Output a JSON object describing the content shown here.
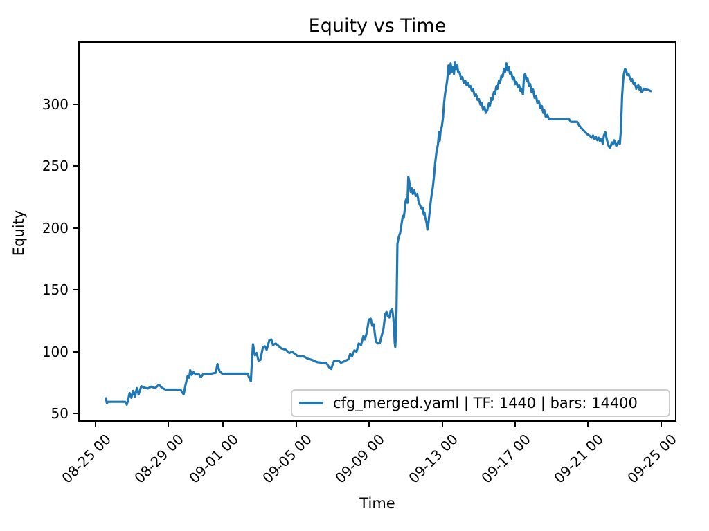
{
  "figure": {
    "background": "#ffffff"
  },
  "colors": {
    "line": "#1f77b4",
    "text": "#000000",
    "legend_border": "#cccccc",
    "spine": "#000000"
  },
  "chart_data": {
    "type": "line",
    "title": "Equity vs Time",
    "xlabel": "Time",
    "ylabel": "Equity",
    "grid": false,
    "legend_position": "lower right",
    "x_tick_rotation": 45,
    "x_axis_unit": "days after 08-25 00",
    "xlim": [
      -0.95,
      31.84
    ],
    "ylim": [
      43.3,
      350.6
    ],
    "y_ticks": [
      50,
      100,
      150,
      200,
      250,
      300
    ],
    "x_ticks": [
      {
        "label": "08-25 00",
        "day": 0
      },
      {
        "label": "08-29 00",
        "day": 4
      },
      {
        "label": "09-01 00",
        "day": 7
      },
      {
        "label": "09-05 00",
        "day": 11
      },
      {
        "label": "09-09 00",
        "day": 15
      },
      {
        "label": "09-13 00",
        "day": 19
      },
      {
        "label": "09-17 00",
        "day": 23
      },
      {
        "label": "09-21 00",
        "day": 27
      },
      {
        "label": "09-25 00",
        "day": 31
      }
    ],
    "series": [
      {
        "name": "cfg_merged.yaml | TF: 1440 | bars: 14400",
        "color": "#1f77b4",
        "points": [
          [
            0.5,
            61.3
          ],
          [
            0.55,
            57.3
          ],
          [
            0.62,
            58.4
          ],
          [
            1.55,
            58.4
          ],
          [
            1.65,
            56.1
          ],
          [
            1.72,
            60.0
          ],
          [
            1.8,
            65.6
          ],
          [
            1.9,
            61.7
          ],
          [
            2.0,
            67.3
          ],
          [
            2.1,
            62.8
          ],
          [
            2.2,
            69.6
          ],
          [
            2.3,
            64.5
          ],
          [
            2.45,
            71.2
          ],
          [
            2.6,
            70.0
          ],
          [
            2.8,
            69.2
          ],
          [
            3.0,
            70.8
          ],
          [
            3.2,
            69.5
          ],
          [
            3.42,
            72.3
          ],
          [
            3.6,
            69.6
          ],
          [
            3.78,
            68.4
          ],
          [
            4.6,
            68.4
          ],
          [
            4.78,
            64.5
          ],
          [
            4.88,
            72.0
          ],
          [
            5.0,
            79.6
          ],
          [
            5.08,
            78.0
          ],
          [
            5.14,
            84.1
          ],
          [
            5.22,
            80.3
          ],
          [
            5.32,
            82.5
          ],
          [
            5.45,
            80.7
          ],
          [
            5.6,
            81.2
          ],
          [
            5.72,
            78.5
          ],
          [
            5.85,
            80.8
          ],
          [
            6.3,
            81.3
          ],
          [
            6.55,
            82.0
          ],
          [
            6.64,
            89.1
          ],
          [
            6.75,
            83.5
          ],
          [
            6.9,
            81.3
          ],
          [
            8.3,
            81.3
          ],
          [
            8.42,
            76.8
          ],
          [
            8.48,
            75.1
          ],
          [
            8.55,
            95.0
          ],
          [
            8.6,
            105.3
          ],
          [
            8.7,
            96.4
          ],
          [
            8.8,
            98.1
          ],
          [
            8.9,
            91.9
          ],
          [
            9.0,
            92.5
          ],
          [
            9.15,
            103.1
          ],
          [
            9.25,
            103.6
          ],
          [
            9.35,
            100.8
          ],
          [
            9.5,
            108.7
          ],
          [
            9.6,
            109.2
          ],
          [
            9.7,
            104.7
          ],
          [
            9.85,
            105.9
          ],
          [
            10.15,
            101.9
          ],
          [
            10.4,
            100.8
          ],
          [
            10.6,
            98.1
          ],
          [
            10.75,
            99.2
          ],
          [
            10.9,
            97.5
          ],
          [
            11.1,
            95.3
          ],
          [
            11.4,
            95.3
          ],
          [
            11.6,
            93.6
          ],
          [
            11.85,
            92.5
          ],
          [
            12.1,
            90.8
          ],
          [
            12.4,
            90.2
          ],
          [
            12.65,
            89.7
          ],
          [
            12.8,
            86.3
          ],
          [
            12.9,
            85.2
          ],
          [
            13.05,
            91.4
          ],
          [
            13.3,
            91.9
          ],
          [
            13.45,
            90.2
          ],
          [
            13.7,
            91.9
          ],
          [
            13.85,
            93.0
          ],
          [
            13.95,
            97.5
          ],
          [
            14.05,
            95.3
          ],
          [
            14.18,
            100.3
          ],
          [
            14.3,
            99.2
          ],
          [
            14.42,
            105.9
          ],
          [
            14.55,
            104.7
          ],
          [
            14.68,
            112.0
          ],
          [
            14.76,
            109.2
          ],
          [
            14.86,
            114.8
          ],
          [
            14.98,
            125.4
          ],
          [
            15.08,
            126.0
          ],
          [
            15.16,
            120.4
          ],
          [
            15.24,
            121.5
          ],
          [
            15.36,
            107.5
          ],
          [
            15.48,
            105.9
          ],
          [
            15.58,
            106.4
          ],
          [
            15.7,
            113.1
          ],
          [
            15.78,
            117.6
          ],
          [
            15.88,
            129.9
          ],
          [
            15.95,
            131.6
          ],
          [
            16.02,
            128.2
          ],
          [
            16.1,
            127.1
          ],
          [
            16.18,
            132.7
          ],
          [
            16.26,
            133.8
          ],
          [
            16.32,
            127.1
          ],
          [
            16.36,
            119.8
          ],
          [
            16.4,
            106.4
          ],
          [
            16.43,
            103.1
          ],
          [
            16.46,
            110.3
          ],
          [
            16.48,
            121.5
          ],
          [
            16.5,
            133.0
          ],
          [
            16.55,
            186.9
          ],
          [
            16.62,
            192.5
          ],
          [
            16.7,
            196.0
          ],
          [
            16.78,
            203.6
          ],
          [
            16.85,
            209.8
          ],
          [
            16.9,
            208.1
          ],
          [
            16.95,
            214.8
          ],
          [
            17.0,
            222.1
          ],
          [
            17.05,
            223.7
          ],
          [
            17.1,
            220.4
          ],
          [
            17.15,
            241.6
          ],
          [
            17.22,
            236.0
          ],
          [
            17.28,
            229.3
          ],
          [
            17.34,
            232.1
          ],
          [
            17.4,
            227.6
          ],
          [
            17.48,
            230.4
          ],
          [
            17.56,
            226.0
          ],
          [
            17.64,
            227.6
          ],
          [
            17.72,
            220.9
          ],
          [
            17.8,
            218.2
          ],
          [
            17.88,
            215.4
          ],
          [
            17.94,
            216.5
          ],
          [
            18.0,
            210.9
          ],
          [
            18.04,
            212.6
          ],
          [
            18.08,
            208.1
          ],
          [
            18.12,
            206.4
          ],
          [
            18.16,
            203.6
          ],
          [
            18.2,
            198.6
          ],
          [
            18.24,
            201.4
          ],
          [
            18.28,
            207.0
          ],
          [
            18.32,
            212.6
          ],
          [
            18.38,
            220.9
          ],
          [
            18.44,
            227.6
          ],
          [
            18.5,
            233.2
          ],
          [
            18.56,
            241.6
          ],
          [
            18.62,
            252.0
          ],
          [
            18.7,
            262.0
          ],
          [
            18.78,
            267.9
          ],
          [
            18.84,
            278.0
          ],
          [
            18.88,
            271.0
          ],
          [
            18.92,
            278.0
          ],
          [
            19.0,
            283.0
          ],
          [
            19.06,
            290.2
          ],
          [
            19.12,
            302.0
          ],
          [
            19.18,
            309.8
          ],
          [
            19.24,
            315.0
          ],
          [
            19.3,
            321.6
          ],
          [
            19.36,
            332.2
          ],
          [
            19.42,
            325.4
          ],
          [
            19.48,
            333.9
          ],
          [
            19.54,
            327.1
          ],
          [
            19.6,
            331.0
          ],
          [
            19.66,
            325.4
          ],
          [
            19.72,
            335.0
          ],
          [
            19.78,
            329.3
          ],
          [
            19.84,
            332.2
          ],
          [
            19.9,
            326.5
          ],
          [
            19.97,
            327.1
          ],
          [
            20.05,
            321.6
          ],
          [
            20.12,
            322.7
          ],
          [
            20.2,
            318.2
          ],
          [
            20.28,
            319.9
          ],
          [
            20.36,
            316.0
          ],
          [
            20.44,
            318.2
          ],
          [
            20.52,
            314.3
          ],
          [
            20.58,
            315.4
          ],
          [
            20.65,
            311.5
          ],
          [
            20.72,
            312.6
          ],
          [
            20.8,
            307.5
          ],
          [
            20.88,
            308.7
          ],
          [
            20.96,
            304.2
          ],
          [
            21.04,
            304.8
          ],
          [
            21.12,
            300.3
          ],
          [
            21.18,
            302.0
          ],
          [
            21.26,
            296.4
          ],
          [
            21.34,
            298.6
          ],
          [
            21.42,
            293.6
          ],
          [
            21.5,
            295.8
          ],
          [
            21.58,
            301.4
          ],
          [
            21.64,
            299.2
          ],
          [
            21.72,
            305.9
          ],
          [
            21.78,
            304.2
          ],
          [
            21.86,
            310.4
          ],
          [
            21.92,
            308.7
          ],
          [
            22.0,
            315.4
          ],
          [
            22.06,
            313.2
          ],
          [
            22.14,
            319.9
          ],
          [
            22.2,
            318.2
          ],
          [
            22.28,
            324.3
          ],
          [
            22.34,
            322.7
          ],
          [
            22.42,
            329.3
          ],
          [
            22.48,
            327.1
          ],
          [
            22.55,
            333.9
          ],
          [
            22.62,
            328.2
          ],
          [
            22.68,
            331.0
          ],
          [
            22.75,
            325.4
          ],
          [
            22.82,
            326.5
          ],
          [
            22.9,
            320.9
          ],
          [
            22.96,
            322.7
          ],
          [
            23.04,
            317.1
          ],
          [
            23.1,
            318.8
          ],
          [
            23.18,
            314.3
          ],
          [
            23.25,
            316.0
          ],
          [
            23.32,
            311.5
          ],
          [
            23.38,
            313.2
          ],
          [
            23.46,
            308.7
          ],
          [
            23.52,
            323.8
          ],
          [
            23.58,
            325.4
          ],
          [
            23.66,
            319.9
          ],
          [
            23.72,
            321.6
          ],
          [
            23.8,
            315.4
          ],
          [
            23.86,
            317.1
          ],
          [
            23.94,
            310.4
          ],
          [
            24.02,
            312.6
          ],
          [
            24.1,
            305.9
          ],
          [
            24.18,
            307.5
          ],
          [
            24.26,
            301.4
          ],
          [
            24.34,
            303.1
          ],
          [
            24.42,
            297.5
          ],
          [
            24.5,
            299.2
          ],
          [
            24.58,
            293.6
          ],
          [
            24.64,
            295.8
          ],
          [
            24.72,
            290.2
          ],
          [
            24.8,
            291.9
          ],
          [
            24.9,
            288.5
          ],
          [
            26.0,
            288.5
          ],
          [
            26.1,
            286.3
          ],
          [
            26.45,
            286.3
          ],
          [
            26.55,
            283.5
          ],
          [
            26.65,
            281.8
          ],
          [
            26.78,
            279.6
          ],
          [
            26.9,
            277.9
          ],
          [
            27.0,
            276.3
          ],
          [
            27.12,
            275.2
          ],
          [
            27.25,
            273.5
          ],
          [
            27.32,
            275.2
          ],
          [
            27.4,
            272.4
          ],
          [
            27.48,
            274.1
          ],
          [
            27.56,
            271.3
          ],
          [
            27.63,
            273.5
          ],
          [
            27.7,
            270.7
          ],
          [
            27.78,
            272.4
          ],
          [
            27.86,
            268.5
          ],
          [
            27.92,
            275.2
          ],
          [
            28.0,
            277.9
          ],
          [
            28.06,
            273.5
          ],
          [
            28.12,
            269.6
          ],
          [
            28.18,
            266.8
          ],
          [
            28.24,
            265.1
          ],
          [
            28.3,
            266.8
          ],
          [
            28.36,
            269.6
          ],
          [
            28.42,
            267.9
          ],
          [
            28.48,
            271.3
          ],
          [
            28.54,
            269.6
          ],
          [
            28.6,
            266.8
          ],
          [
            28.66,
            267.9
          ],
          [
            28.72,
            270.7
          ],
          [
            28.8,
            268.5
          ],
          [
            28.86,
            280.7
          ],
          [
            28.92,
            307.0
          ],
          [
            28.98,
            319.9
          ],
          [
            29.02,
            325.4
          ],
          [
            29.08,
            329.3
          ],
          [
            29.15,
            328.2
          ],
          [
            29.2,
            324.3
          ],
          [
            29.28,
            325.4
          ],
          [
            29.36,
            321.6
          ],
          [
            29.42,
            319.9
          ],
          [
            29.48,
            321.0
          ],
          [
            29.55,
            317.1
          ],
          [
            29.62,
            318.2
          ],
          [
            29.7,
            313.2
          ],
          [
            29.76,
            315.4
          ],
          [
            29.82,
            316.0
          ],
          [
            29.88,
            312.6
          ],
          [
            29.94,
            314.3
          ],
          [
            30.0,
            310.4
          ],
          [
            30.06,
            311.5
          ],
          [
            30.14,
            313.2
          ],
          [
            30.25,
            312.6
          ],
          [
            30.38,
            312.2
          ],
          [
            30.5,
            311.3
          ]
        ]
      }
    ]
  }
}
